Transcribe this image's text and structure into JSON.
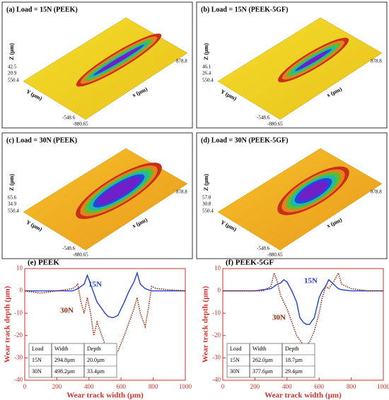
{
  "panels": [
    {
      "title": "(a) Load = 15N (PEEK)",
      "z_label": "Z (µm)",
      "y_label": "Y (µm)",
      "x_label": "x (µm)",
      "z_ticks": [
        "42.5",
        "20.9"
      ],
      "y_end": "550.4",
      "y_start": "-548.6",
      "x_start": "-880.65",
      "x_end": "878.8"
    },
    {
      "title": "(b) Load = 15N (PEEK-5GF)",
      "z_label": "Z (µm)",
      "y_label": "Y (µm)",
      "x_label": "x (µm)",
      "z_ticks": [
        "46.1",
        "26.4"
      ],
      "y_end": "550.4",
      "y_start": "-548.6",
      "x_start": "-880.65",
      "x_end": "878.8"
    },
    {
      "title": "(c) Load = 30N (PEEK)",
      "z_label": "Z (µm)",
      "y_label": "Y (µm)",
      "x_label": "x (µm)",
      "z_ticks": [
        "65.6",
        "34.9"
      ],
      "y_end": "550.4",
      "y_start": "-548.6",
      "x_start": "-880.65",
      "x_end": "878.8"
    },
    {
      "title": "(d) Load = 30N (PEEK-5GF)",
      "z_label": "Z (µm)",
      "y_label": "Y (µm)",
      "x_label": "x (µm)",
      "z_ticks": [
        "57.0",
        "30.8"
      ],
      "y_end": "550.4",
      "y_start": "-548.6",
      "x_start": "-880.65",
      "x_end": "878.8"
    }
  ],
  "chart_data": [
    {
      "type": "line",
      "title": "(e) PEEK",
      "xlabel": "Wear track width (µm)",
      "ylabel": "Wear track depth (µm)",
      "xlim": [
        0,
        1000
      ],
      "xticks": [
        0,
        200,
        400,
        600,
        800,
        1000
      ],
      "ylim": [
        -40,
        10
      ],
      "yticks": [
        -40,
        -30,
        -20,
        -10,
        0,
        10
      ],
      "x": [
        0,
        100,
        200,
        300,
        330,
        350,
        370,
        390,
        410,
        430,
        450,
        480,
        500,
        520,
        550,
        580,
        620,
        650,
        680,
        700,
        720,
        750,
        770,
        790,
        820,
        900,
        1000
      ],
      "series": [
        {
          "name": "15N",
          "color": "#1f3fd0",
          "values": [
            0,
            0,
            0,
            0,
            1,
            2,
            3,
            7,
            3,
            -1,
            -5,
            -8,
            -10,
            -11.5,
            -12,
            -11,
            -5,
            0,
            4,
            8,
            3,
            1,
            0.5,
            0,
            0,
            0,
            0
          ]
        },
        {
          "name": "30N",
          "color": "#9b2a10",
          "values": [
            0,
            -1,
            0,
            1,
            3,
            -5,
            -10,
            -3,
            -10,
            -20,
            -14,
            -20,
            -24,
            -26,
            -29,
            -27,
            -20,
            -14,
            -8,
            -3,
            -10,
            -16,
            -8,
            2,
            1,
            0.5,
            0
          ]
        }
      ],
      "table": {
        "header": [
          "Load",
          "Width",
          "Depth"
        ],
        "rows": [
          [
            "15N",
            "294.8µm",
            "20.0µm"
          ],
          [
            "30N",
            "498.2µm",
            "33.4µm"
          ]
        ]
      }
    },
    {
      "type": "line",
      "title": "(f) PEEK-5GF",
      "xlabel": "Wear track width (µm)",
      "ylabel": "Wear track depth (µm)",
      "xlim": [
        0,
        1000
      ],
      "xticks": [
        0,
        200,
        400,
        600,
        800,
        1000
      ],
      "ylim": [
        -40,
        10
      ],
      "yticks": [
        -40,
        -30,
        -20,
        -10,
        0,
        10
      ],
      "x": [
        0,
        100,
        200,
        250,
        300,
        320,
        340,
        360,
        380,
        400,
        430,
        460,
        480,
        500,
        520,
        540,
        570,
        600,
        620,
        640,
        660,
        690,
        720,
        740,
        800,
        900,
        1000
      ],
      "series": [
        {
          "name": "15N",
          "color": "#1f3fd0",
          "values": [
            0,
            0,
            0,
            0.5,
            1,
            2,
            3,
            3.5,
            5,
            4,
            0,
            -5,
            -12,
            -14,
            -15,
            -15,
            -12,
            -3,
            0,
            2,
            5,
            3,
            1,
            0.5,
            0,
            0,
            0
          ]
        },
        {
          "name": "30N",
          "color": "#9b2a10",
          "values": [
            0,
            0,
            0,
            0,
            2,
            8,
            4,
            -2,
            -5,
            -8,
            -14,
            -20,
            -22,
            -24,
            -24,
            -23,
            -18,
            -10,
            -3,
            2,
            1,
            4,
            8,
            3,
            1,
            0,
            0
          ]
        }
      ],
      "table": {
        "header": [
          "Load",
          "Width",
          "Depth"
        ],
        "rows": [
          [
            "15N",
            "262.0µm",
            "18.7µm"
          ],
          [
            "30N",
            "377.6µm",
            "29.4µm"
          ]
        ]
      }
    }
  ]
}
